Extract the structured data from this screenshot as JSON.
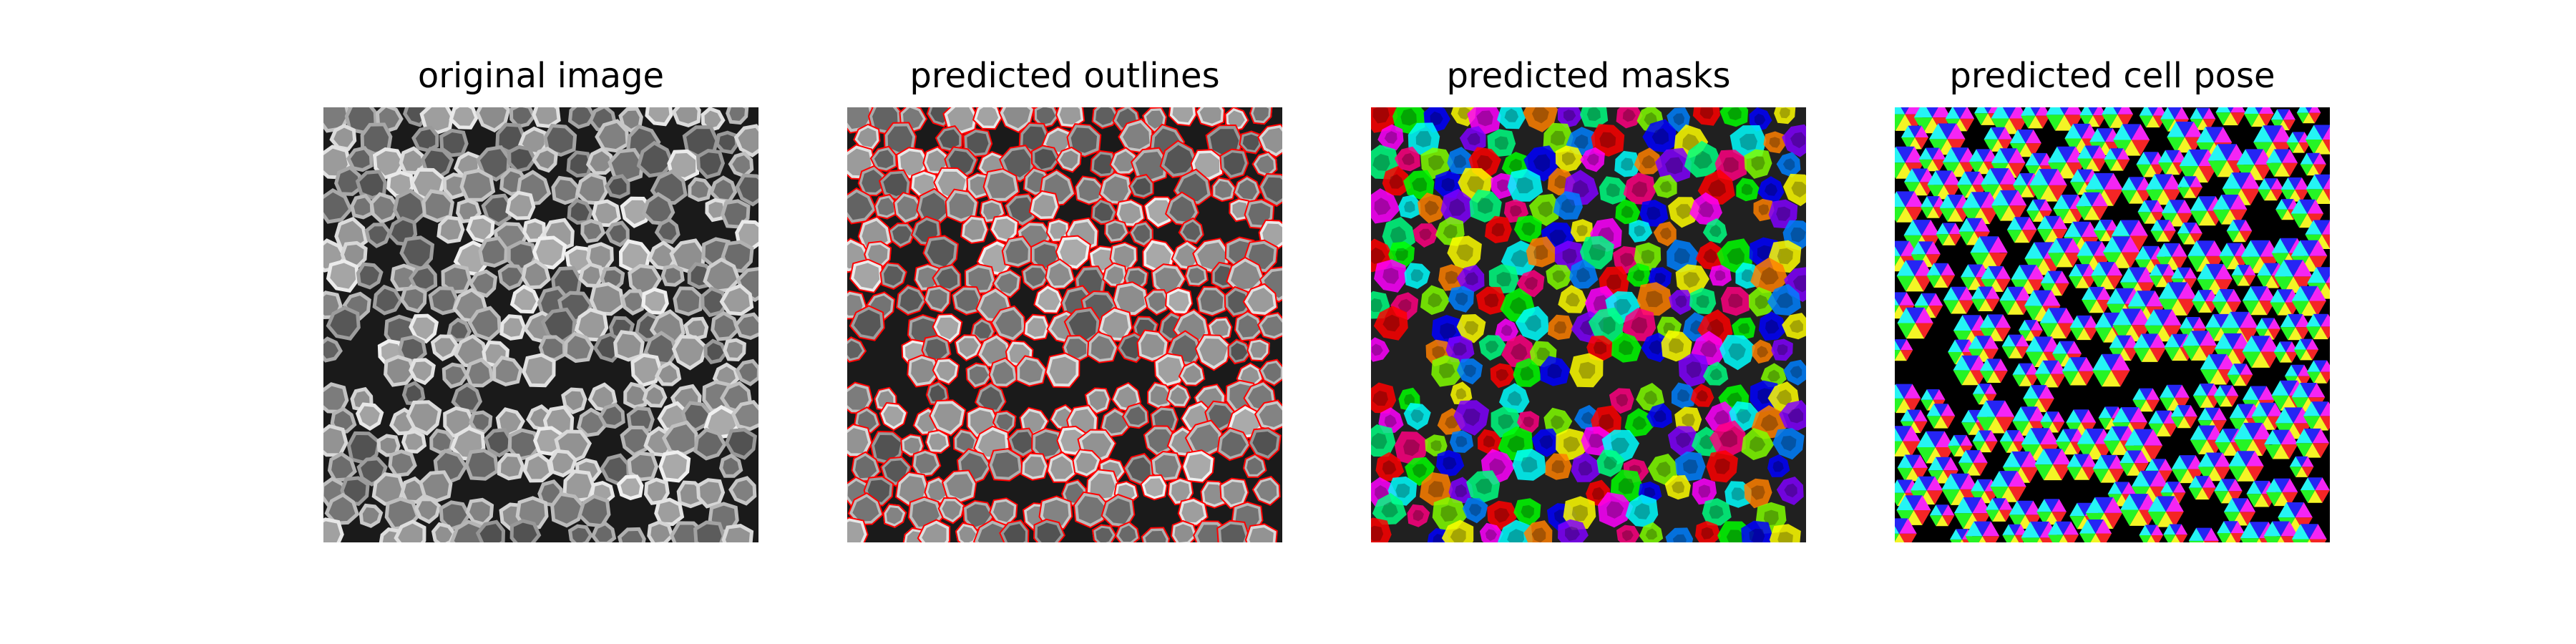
{
  "figure": {
    "panels": [
      {
        "title": "original image"
      },
      {
        "title": "predicted outlines"
      },
      {
        "title": "predicted masks"
      },
      {
        "title": "predicted cell pose"
      }
    ]
  },
  "colors": {
    "outline": "#ff0000",
    "mask_palette": [
      "#ff0000",
      "#00ff00",
      "#0000ff",
      "#ffff00",
      "#ff00ff",
      "#00ffff",
      "#ff8000",
      "#8000ff",
      "#00ff80",
      "#ff0080",
      "#80ff00",
      "#0080ff"
    ]
  }
}
